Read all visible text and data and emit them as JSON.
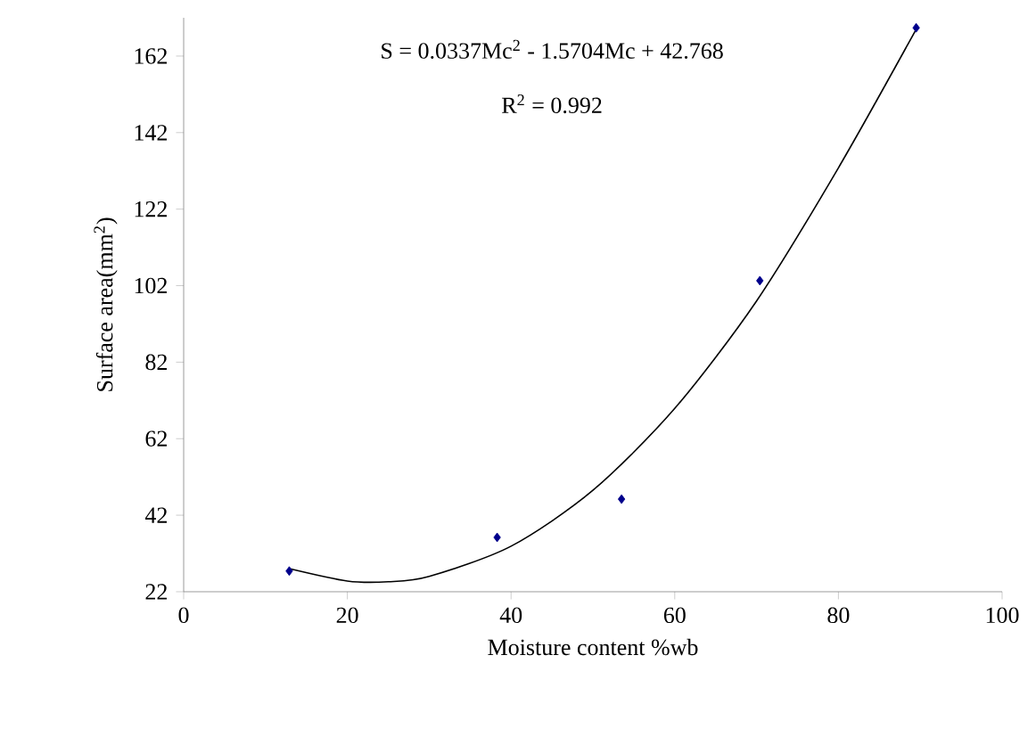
{
  "chart_data": {
    "type": "scatter",
    "xlabel": "Moisture content %wb",
    "ylabel": "Surface area(mm$^{2}$)",
    "annotations": [
      "S = 0.0337Mc$^{2}$ - 1.5704Mc + 42.768",
      "R$^{2}$ = 0.992"
    ],
    "series": [
      {
        "color": "#00008b",
        "marker": "diamond",
        "x": [
          12.9,
          38.3,
          53.5,
          70.4,
          89.5
        ],
        "values": [
          27.4,
          36.2,
          46.2,
          103.3,
          169.4
        ]
      },
      {
        "type": "line",
        "color": "#000000",
        "marker": "none",
        "line_style": "solid",
        "x": [
          13,
          20,
          25,
          30,
          40,
          50,
          60,
          70,
          80,
          89.5
        ],
        "values": [
          28.0,
          24.8,
          24.6,
          26.0,
          33.9,
          48.5,
          69.9,
          98.0,
          132.8,
          169
        ]
      }
    ],
    "xlim": [
      0,
      100
    ],
    "ylim": [
      22,
      172
    ],
    "xticks": [
      0,
      20,
      40,
      60,
      80,
      100
    ],
    "yticks": [
      22,
      42,
      62,
      82,
      102,
      122,
      142,
      162
    ],
    "grid": false
  }
}
